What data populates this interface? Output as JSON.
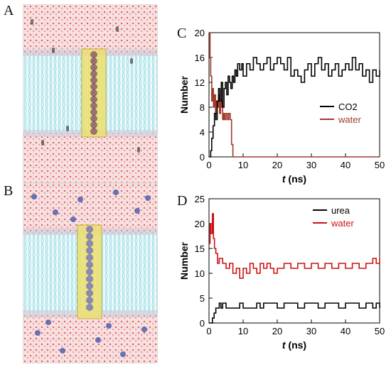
{
  "figure": {
    "panels": {
      "A": "A",
      "B": "B",
      "C": "C",
      "D": "D"
    }
  },
  "colors": {
    "water_bg": "#f2c8c8",
    "membrane": "#b8e6ea",
    "tube": "#e8e070",
    "black_series": "#000000",
    "red_series": "#cc1111",
    "brown_series": "#a03a2a"
  },
  "chart_data": [
    {
      "id": "C",
      "type": "line",
      "xlabel_italic": "t",
      "xlabel_unit": " (ns)",
      "ylabel": "Number",
      "xlim": [
        0,
        50
      ],
      "ylim": [
        0,
        20
      ],
      "xticks": [
        0,
        10,
        20,
        30,
        40,
        50
      ],
      "yticks": [
        0,
        4,
        8,
        12,
        16,
        20
      ],
      "legend_position": "right",
      "series": [
        {
          "name": "CO2",
          "color": "#000000",
          "points": [
            [
              0,
              0
            ],
            [
              0.5,
              1
            ],
            [
              0.8,
              3
            ],
            [
              1.2,
              5
            ],
            [
              1.6,
              7
            ],
            [
              2,
              6
            ],
            [
              2.4,
              9
            ],
            [
              2.8,
              11
            ],
            [
              3.2,
              9
            ],
            [
              3.6,
              12
            ],
            [
              4,
              8
            ],
            [
              4.4,
              11
            ],
            [
              4.8,
              12
            ],
            [
              5.2,
              10
            ],
            [
              5.6,
              13
            ],
            [
              6,
              12
            ],
            [
              6.4,
              11
            ],
            [
              6.8,
              13
            ],
            [
              7.2,
              12
            ],
            [
              7.6,
              14
            ],
            [
              8,
              13
            ],
            [
              8.4,
              15
            ],
            [
              9,
              14
            ],
            [
              9.6,
              15
            ],
            [
              10,
              13
            ],
            [
              11,
              15
            ],
            [
              12,
              14
            ],
            [
              13,
              16
            ],
            [
              14,
              15
            ],
            [
              15,
              14
            ],
            [
              16,
              15
            ],
            [
              17,
              16
            ],
            [
              18,
              14
            ],
            [
              19,
              15
            ],
            [
              20,
              16
            ],
            [
              21,
              15
            ],
            [
              22,
              14
            ],
            [
              23,
              16
            ],
            [
              24,
              13
            ],
            [
              25,
              14
            ],
            [
              26,
              13
            ],
            [
              27,
              12
            ],
            [
              28,
              14
            ],
            [
              29,
              15
            ],
            [
              30,
              13
            ],
            [
              31,
              15
            ],
            [
              32,
              16
            ],
            [
              33,
              14
            ],
            [
              34,
              15
            ],
            [
              35,
              13
            ],
            [
              36,
              14
            ],
            [
              37,
              15
            ],
            [
              38,
              13
            ],
            [
              39,
              14
            ],
            [
              40,
              15
            ],
            [
              41,
              14
            ],
            [
              42,
              16
            ],
            [
              43,
              14
            ],
            [
              44,
              15
            ],
            [
              45,
              13
            ],
            [
              46,
              14
            ],
            [
              47,
              12
            ],
            [
              48,
              14
            ],
            [
              49,
              13
            ],
            [
              50,
              14
            ]
          ]
        },
        {
          "name": "water",
          "color": "#a03a2a",
          "points": [
            [
              0,
              20
            ],
            [
              0.3,
              16
            ],
            [
              0.5,
              13
            ],
            [
              0.8,
              9
            ],
            [
              1,
              11
            ],
            [
              1.3,
              8
            ],
            [
              1.6,
              10
            ],
            [
              1.9,
              7
            ],
            [
              2.2,
              9
            ],
            [
              2.5,
              8
            ],
            [
              2.8,
              10
            ],
            [
              3.1,
              7
            ],
            [
              3.4,
              9
            ],
            [
              3.7,
              8
            ],
            [
              4,
              6
            ],
            [
              4.3,
              7
            ],
            [
              4.6,
              6
            ],
            [
              5,
              7
            ],
            [
              5.4,
              6
            ],
            [
              5.8,
              7
            ],
            [
              6.2,
              6
            ],
            [
              6.6,
              2
            ],
            [
              7,
              0
            ],
            [
              10,
              0
            ],
            [
              14,
              0
            ],
            [
              20,
              0
            ],
            [
              30,
              0
            ],
            [
              40,
              0
            ],
            [
              50,
              0
            ]
          ]
        }
      ]
    },
    {
      "id": "D",
      "type": "line",
      "xlabel_italic": "t",
      "xlabel_unit": " (ns)",
      "ylabel": "Number",
      "xlim": [
        0,
        50
      ],
      "ylim": [
        0,
        25
      ],
      "xticks": [
        0,
        10,
        20,
        30,
        40,
        50
      ],
      "yticks": [
        0,
        5,
        10,
        15,
        20,
        25
      ],
      "legend_position": "top-right",
      "series": [
        {
          "name": "urea",
          "color": "#000000",
          "points": [
            [
              0,
              0
            ],
            [
              0.5,
              0
            ],
            [
              1,
              1
            ],
            [
              1.5,
              2
            ],
            [
              2,
              3
            ],
            [
              2.5,
              3
            ],
            [
              3,
              4
            ],
            [
              3.5,
              3
            ],
            [
              4,
              4
            ],
            [
              5,
              3
            ],
            [
              6,
              3
            ],
            [
              7,
              3
            ],
            [
              8,
              3
            ],
            [
              9,
              4
            ],
            [
              10,
              3
            ],
            [
              12,
              3
            ],
            [
              14,
              4
            ],
            [
              15,
              3
            ],
            [
              16,
              4
            ],
            [
              18,
              4
            ],
            [
              20,
              3
            ],
            [
              22,
              4
            ],
            [
              24,
              4
            ],
            [
              26,
              3
            ],
            [
              28,
              4
            ],
            [
              30,
              4
            ],
            [
              32,
              3
            ],
            [
              34,
              4
            ],
            [
              36,
              4
            ],
            [
              38,
              3
            ],
            [
              40,
              4
            ],
            [
              42,
              4
            ],
            [
              44,
              3
            ],
            [
              46,
              4
            ],
            [
              48,
              3
            ],
            [
              49,
              4
            ],
            [
              50,
              3
            ]
          ]
        },
        {
          "name": "water",
          "color": "#cc1111",
          "points": [
            [
              0,
              16
            ],
            [
              0.3,
              20
            ],
            [
              0.6,
              18
            ],
            [
              1,
              22
            ],
            [
              1.3,
              17
            ],
            [
              1.6,
              15
            ],
            [
              2,
              14
            ],
            [
              2.5,
              12
            ],
            [
              3,
              13
            ],
            [
              4,
              12
            ],
            [
              5,
              11
            ],
            [
              6,
              12
            ],
            [
              7,
              10
            ],
            [
              8,
              11
            ],
            [
              9,
              9
            ],
            [
              10,
              11
            ],
            [
              11,
              10
            ],
            [
              12,
              12
            ],
            [
              13,
              11
            ],
            [
              14,
              10
            ],
            [
              15,
              12
            ],
            [
              16,
              11
            ],
            [
              17,
              12
            ],
            [
              18,
              11
            ],
            [
              19,
              10
            ],
            [
              20,
              11
            ],
            [
              22,
              12
            ],
            [
              24,
              11
            ],
            [
              26,
              12
            ],
            [
              28,
              11
            ],
            [
              30,
              12
            ],
            [
              32,
              11
            ],
            [
              34,
              12
            ],
            [
              36,
              11
            ],
            [
              38,
              12
            ],
            [
              40,
              11
            ],
            [
              42,
              12
            ],
            [
              44,
              11
            ],
            [
              46,
              12
            ],
            [
              48,
              13
            ],
            [
              49,
              12
            ],
            [
              50,
              13
            ]
          ]
        }
      ]
    }
  ]
}
